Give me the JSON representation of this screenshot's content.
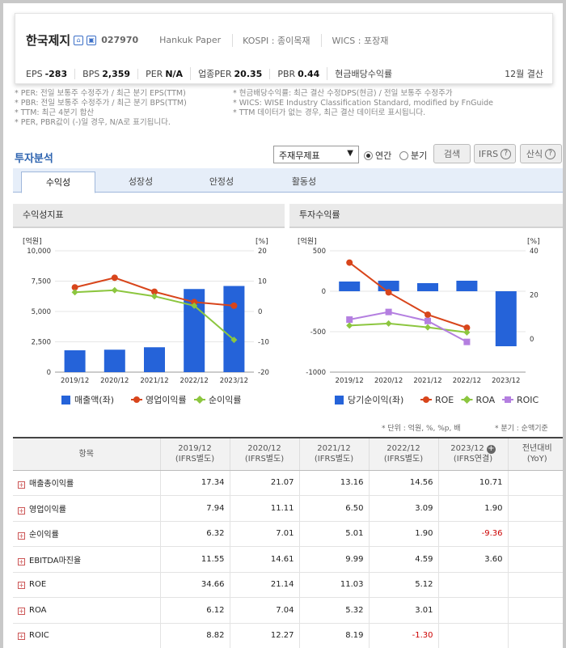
{
  "header": {
    "company": "한국제지",
    "code": "027970",
    "eng_name": "Hankuk Paper",
    "market": "KOSPI : 종이목재",
    "wics": "WICS : 포장재",
    "metrics": [
      {
        "label": "EPS",
        "value": "-283"
      },
      {
        "label": "BPS",
        "value": "2,359"
      },
      {
        "label": "PER",
        "value": "N/A"
      },
      {
        "label": "업종PER",
        "value": "20.35"
      },
      {
        "label": "PBR",
        "value": "0.44"
      },
      {
        "label": "현금배당수익률",
        "value": ""
      }
    ],
    "settlement": "12월 결산"
  },
  "notes": {
    "left": [
      "* PER: 전일 보통주 수정주가 / 최근 분기 EPS(TTM)",
      "* PBR: 전일 보통주 수정주가 / 최근 분기 BPS(TTM)",
      "* TTM: 최근 4분기 합산",
      "* PER, PBR값이 (-)일 경우, N/A로 표기됩니다."
    ],
    "right": [
      "* 현금배당수익률: 최근 결산 수정DPS(현금) / 전일 보통주 수정주가",
      "* WICS: WISE Industry Classification Standard, modified by FnGuide",
      "* TTM 데이터가 없는 경우, 최근 결산 데이터로 표시됩니다."
    ]
  },
  "controls": {
    "section_title": "투자분석",
    "select_value": "주재무제표",
    "radio_annual": "연간",
    "radio_quarter": "분기",
    "search": "검색",
    "ifrs": "IFRS",
    "formula": "산식"
  },
  "tabs": [
    "수익성",
    "성장성",
    "안정성",
    "활동성"
  ],
  "panels": {
    "left_title": "수익성지표",
    "right_title": "투자수익률"
  },
  "chart_data": [
    {
      "type": "bar+line",
      "title": "수익성지표",
      "categories": [
        "2019/12",
        "2020/12",
        "2021/12",
        "2022/12",
        "2023/12"
      ],
      "left_axis_label": "[억원]",
      "right_axis_label": "[%]",
      "left_ticks": [
        "10,000",
        "7,500",
        "5,000",
        "2,500",
        "0"
      ],
      "right_ticks": [
        "20",
        "10",
        "0",
        "-10",
        "-20"
      ],
      "left_ylim": [
        0,
        10000
      ],
      "right_ylim": [
        -20,
        20
      ],
      "bars": {
        "name": "매출액(좌)",
        "color": "#2563d9",
        "values": [
          1800,
          1850,
          2050,
          6850,
          7100
        ]
      },
      "lines": [
        {
          "name": "영업이익률",
          "color": "#d8451b",
          "values": [
            7.94,
            11.11,
            6.5,
            3.09,
            1.9
          ]
        },
        {
          "name": "순이익률",
          "color": "#8cc63f",
          "values": [
            6.32,
            7.01,
            5.01,
            1.9,
            -9.36
          ]
        }
      ]
    },
    {
      "type": "bar+line",
      "title": "투자수익률",
      "categories": [
        "2019/12",
        "2020/12",
        "2021/12",
        "2022/12",
        "2023/12"
      ],
      "left_axis_label": "[억원]",
      "right_axis_label": "[%]",
      "left_ticks": [
        "500",
        "0",
        "-500",
        "-1000"
      ],
      "right_ticks": [
        "40",
        "20",
        "0"
      ],
      "left_ylim": [
        -1000,
        500
      ],
      "right_ylim": [
        -15,
        40
      ],
      "bars": {
        "name": "당기순이익(좌)",
        "color": "#2563d9",
        "values": [
          120,
          130,
          100,
          130,
          -680
        ]
      },
      "lines": [
        {
          "name": "ROE",
          "color": "#d8451b",
          "values": [
            34.66,
            21.14,
            11.03,
            5.12,
            null
          ]
        },
        {
          "name": "ROA",
          "color": "#8cc63f",
          "values": [
            6.12,
            7.04,
            5.32,
            3.01,
            null
          ]
        },
        {
          "name": "ROIC",
          "color": "#b47fe0",
          "values": [
            8.82,
            12.27,
            8.19,
            -1.3,
            null
          ]
        }
      ]
    }
  ],
  "unit_note": "* 단위 : 억원, %, %p, 배",
  "quarter_note": "* 분기 : 순액기준",
  "table": {
    "headers": [
      "항목",
      "2019/12\n(IFRS별도)",
      "2020/12\n(IFRS별도)",
      "2021/12\n(IFRS별도)",
      "2022/12\n(IFRS별도)",
      "2023/12\n(IFRS연결)",
      "전년대비\n(YoY)"
    ],
    "rows": [
      [
        "매출총이익률",
        "17.34",
        "21.07",
        "13.16",
        "14.56",
        "10.71",
        ""
      ],
      [
        "영업이익률",
        "7.94",
        "11.11",
        "6.50",
        "3.09",
        "1.90",
        ""
      ],
      [
        "순이익률",
        "6.32",
        "7.01",
        "5.01",
        "1.90",
        "-9.36",
        ""
      ],
      [
        "EBITDA마진율",
        "11.55",
        "14.61",
        "9.99",
        "4.59",
        "3.60",
        ""
      ],
      [
        "ROE",
        "34.66",
        "21.14",
        "11.03",
        "5.12",
        "",
        ""
      ],
      [
        "ROA",
        "6.12",
        "7.04",
        "5.32",
        "3.01",
        "",
        ""
      ],
      [
        "ROIC",
        "8.82",
        "12.27",
        "8.19",
        "-1.30",
        "",
        ""
      ]
    ]
  }
}
